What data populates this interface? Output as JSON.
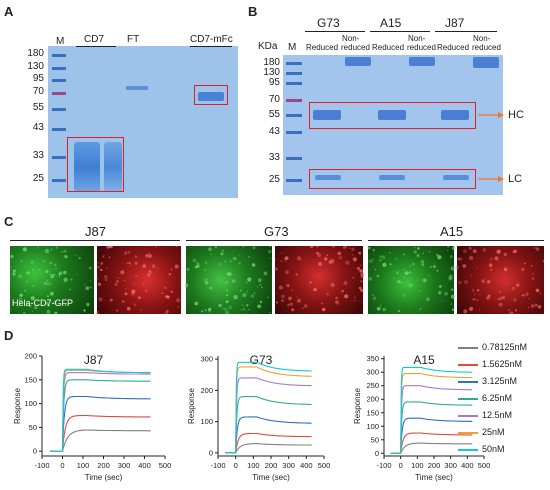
{
  "panels": {
    "A": "A",
    "B": "B",
    "C": "C",
    "D": "D"
  },
  "panel_a": {
    "lane_m": "M",
    "lane_cd7": "CD7",
    "lane_ft": "FT",
    "lane_cd7mfc": "CD7-mFc",
    "markers": [
      "180",
      "130",
      "95",
      "70",
      "55",
      "43",
      "33",
      "25"
    ]
  },
  "panel_b": {
    "kda": "KDa",
    "lane_m": "M",
    "groups": [
      "G73",
      "A15",
      "J87"
    ],
    "reduced": "Reduced",
    "non1": "Non-",
    "non2": "reduced",
    "markers": [
      "180",
      "130",
      "95",
      "70",
      "55",
      "43",
      "33",
      "25"
    ],
    "hc": "HC",
    "lc": "LC"
  },
  "panel_c": {
    "groups": [
      "J87",
      "G73",
      "A15"
    ],
    "caption": "Hela-CD7-GFP"
  },
  "panel_d": {
    "legend": [
      "0.78125nM",
      "1.5625nM",
      "3.125nM",
      "6.25nM",
      "12.5nM",
      "25nM",
      "50nM"
    ],
    "colors": [
      "#808080",
      "#e8473b",
      "#2f6fc9",
      "#33a89a",
      "#a878cf",
      "#f0a030",
      "#10c8d8"
    ],
    "ylabel": "Response",
    "xlabel": "Time (sec)"
  },
  "chart_data": [
    {
      "type": "line",
      "title": "J87",
      "xlabel": "Time (sec)",
      "ylabel": "Response",
      "xlim": [
        -100,
        500
      ],
      "ylim": [
        -10,
        200
      ],
      "x_ticks": [
        "-100",
        "0",
        "100",
        "200",
        "300",
        "400",
        "500"
      ],
      "y_ticks": [
        "0",
        "50",
        "100",
        "150",
        "200"
      ],
      "assoc_end": 120,
      "dissoc_end": 430,
      "series": [
        {
          "name": "0.78125nM",
          "peak": 45,
          "end": 43
        },
        {
          "name": "1.5625nM",
          "peak": 75,
          "end": 72
        },
        {
          "name": "3.125nM",
          "peak": 115,
          "end": 110
        },
        {
          "name": "6.25nM",
          "peak": 150,
          "end": 147
        },
        {
          "name": "12.5nM",
          "peak": 165,
          "end": 162
        },
        {
          "name": "25nM",
          "peak": 170,
          "end": 165
        },
        {
          "name": "50nM",
          "peak": 172,
          "end": 165
        }
      ]
    },
    {
      "type": "line",
      "title": "G73",
      "xlabel": "Time (sec)",
      "ylabel": "Response",
      "xlim": [
        -100,
        500
      ],
      "ylim": [
        -10,
        310
      ],
      "x_ticks": [
        "-100",
        "0",
        "100",
        "200",
        "300",
        "400",
        "500"
      ],
      "y_ticks": [
        "0",
        "100",
        "200",
        "300"
      ],
      "assoc_end": 120,
      "dissoc_end": 430,
      "series": [
        {
          "name": "0.78125nM",
          "peak": 30,
          "end": 25
        },
        {
          "name": "1.5625nM",
          "peak": 62,
          "end": 52
        },
        {
          "name": "3.125nM",
          "peak": 115,
          "end": 95
        },
        {
          "name": "6.25nM",
          "peak": 180,
          "end": 155
        },
        {
          "name": "12.5nM",
          "peak": 240,
          "end": 215
        },
        {
          "name": "25nM",
          "peak": 275,
          "end": 245
        },
        {
          "name": "50nM",
          "peak": 290,
          "end": 262
        }
      ]
    },
    {
      "type": "line",
      "title": "A15",
      "xlabel": "Time (sec)",
      "ylabel": "Response",
      "xlim": [
        -100,
        500
      ],
      "ylim": [
        -10,
        360
      ],
      "x_ticks": [
        "-100",
        "0",
        "100",
        "200",
        "300",
        "400",
        "500"
      ],
      "y_ticks": [
        "0",
        "50",
        "100",
        "150",
        "200",
        "250",
        "300",
        "350"
      ],
      "assoc_end": 120,
      "dissoc_end": 430,
      "series": [
        {
          "name": "0.78125nM",
          "peak": 38,
          "end": 35
        },
        {
          "name": "1.5625nM",
          "peak": 75,
          "end": 68
        },
        {
          "name": "3.125nM",
          "peak": 130,
          "end": 118
        },
        {
          "name": "6.25nM",
          "peak": 190,
          "end": 178
        },
        {
          "name": "12.5nM",
          "peak": 250,
          "end": 235
        },
        {
          "name": "25nM",
          "peak": 295,
          "end": 280
        },
        {
          "name": "50nM",
          "peak": 318,
          "end": 300
        }
      ]
    }
  ]
}
